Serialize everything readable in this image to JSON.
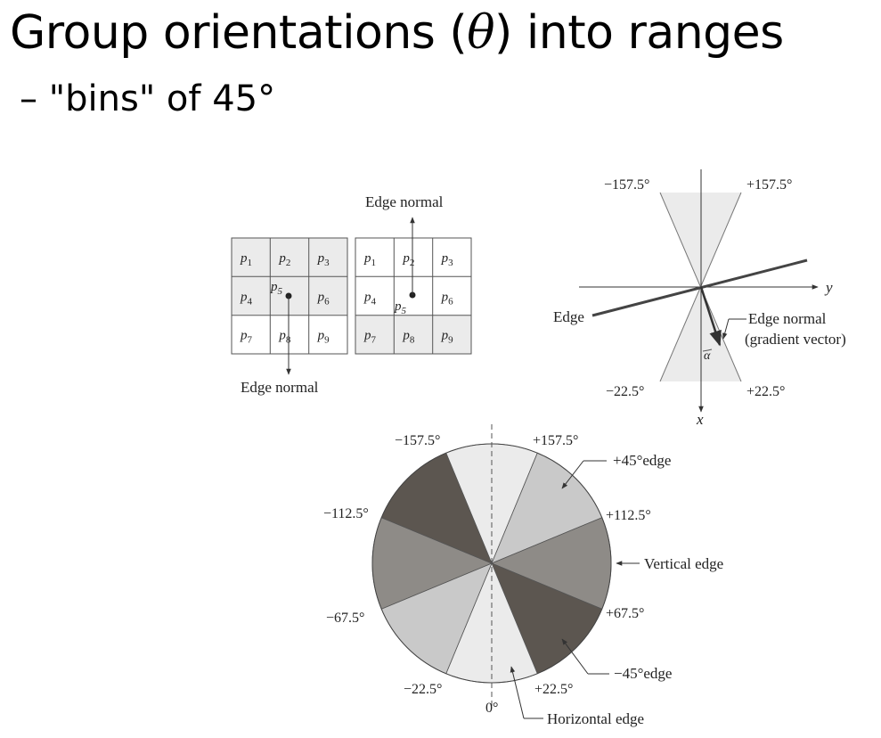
{
  "slide": {
    "title_pre": "Group orientations (",
    "title_symbol": "θ",
    "title_post": ") into ranges",
    "bullet_dash": "–",
    "bullet_text": "\"bins\" of 45°"
  },
  "grid_figure": {
    "cells": [
      "p",
      "p",
      "p",
      "p",
      "p",
      "p",
      "p",
      "p",
      "p"
    ],
    "subscripts": [
      "1",
      "2",
      "3",
      "4",
      "5",
      "6",
      "7",
      "8",
      "9"
    ],
    "center_label": "p",
    "center_sub": "5",
    "left_normal_label": "Edge normal",
    "right_normal_label": "Edge normal"
  },
  "axes_figure": {
    "label_tl": "−157.5°",
    "label_tr": "+157.5°",
    "label_bl": "−22.5°",
    "label_br": "+22.5°",
    "edge_label": "Edge",
    "normal_label_1": "Edge normal",
    "normal_label_2": "(gradient vector)",
    "alpha": "α",
    "y_axis": "y",
    "x_axis": "x"
  },
  "wheel_figure": {
    "sector_colors": [
      "#ebebeb",
      "#c9c9c9",
      "#8e8b87",
      "#5c5650"
    ],
    "labels": {
      "top_left": "−157.5°",
      "top_right": "+157.5°",
      "upper_left": "−112.5°",
      "upper_right": "+112.5°",
      "lower_left": "−67.5°",
      "lower_right": "+67.5°",
      "bottom_left": "−22.5°",
      "bottom_right": "+22.5°",
      "zero": "0°"
    },
    "callouts": {
      "plus45": "+45°edge",
      "vertical": "Vertical edge",
      "minus45": "−45°edge",
      "horizontal": "Horizontal edge"
    }
  }
}
